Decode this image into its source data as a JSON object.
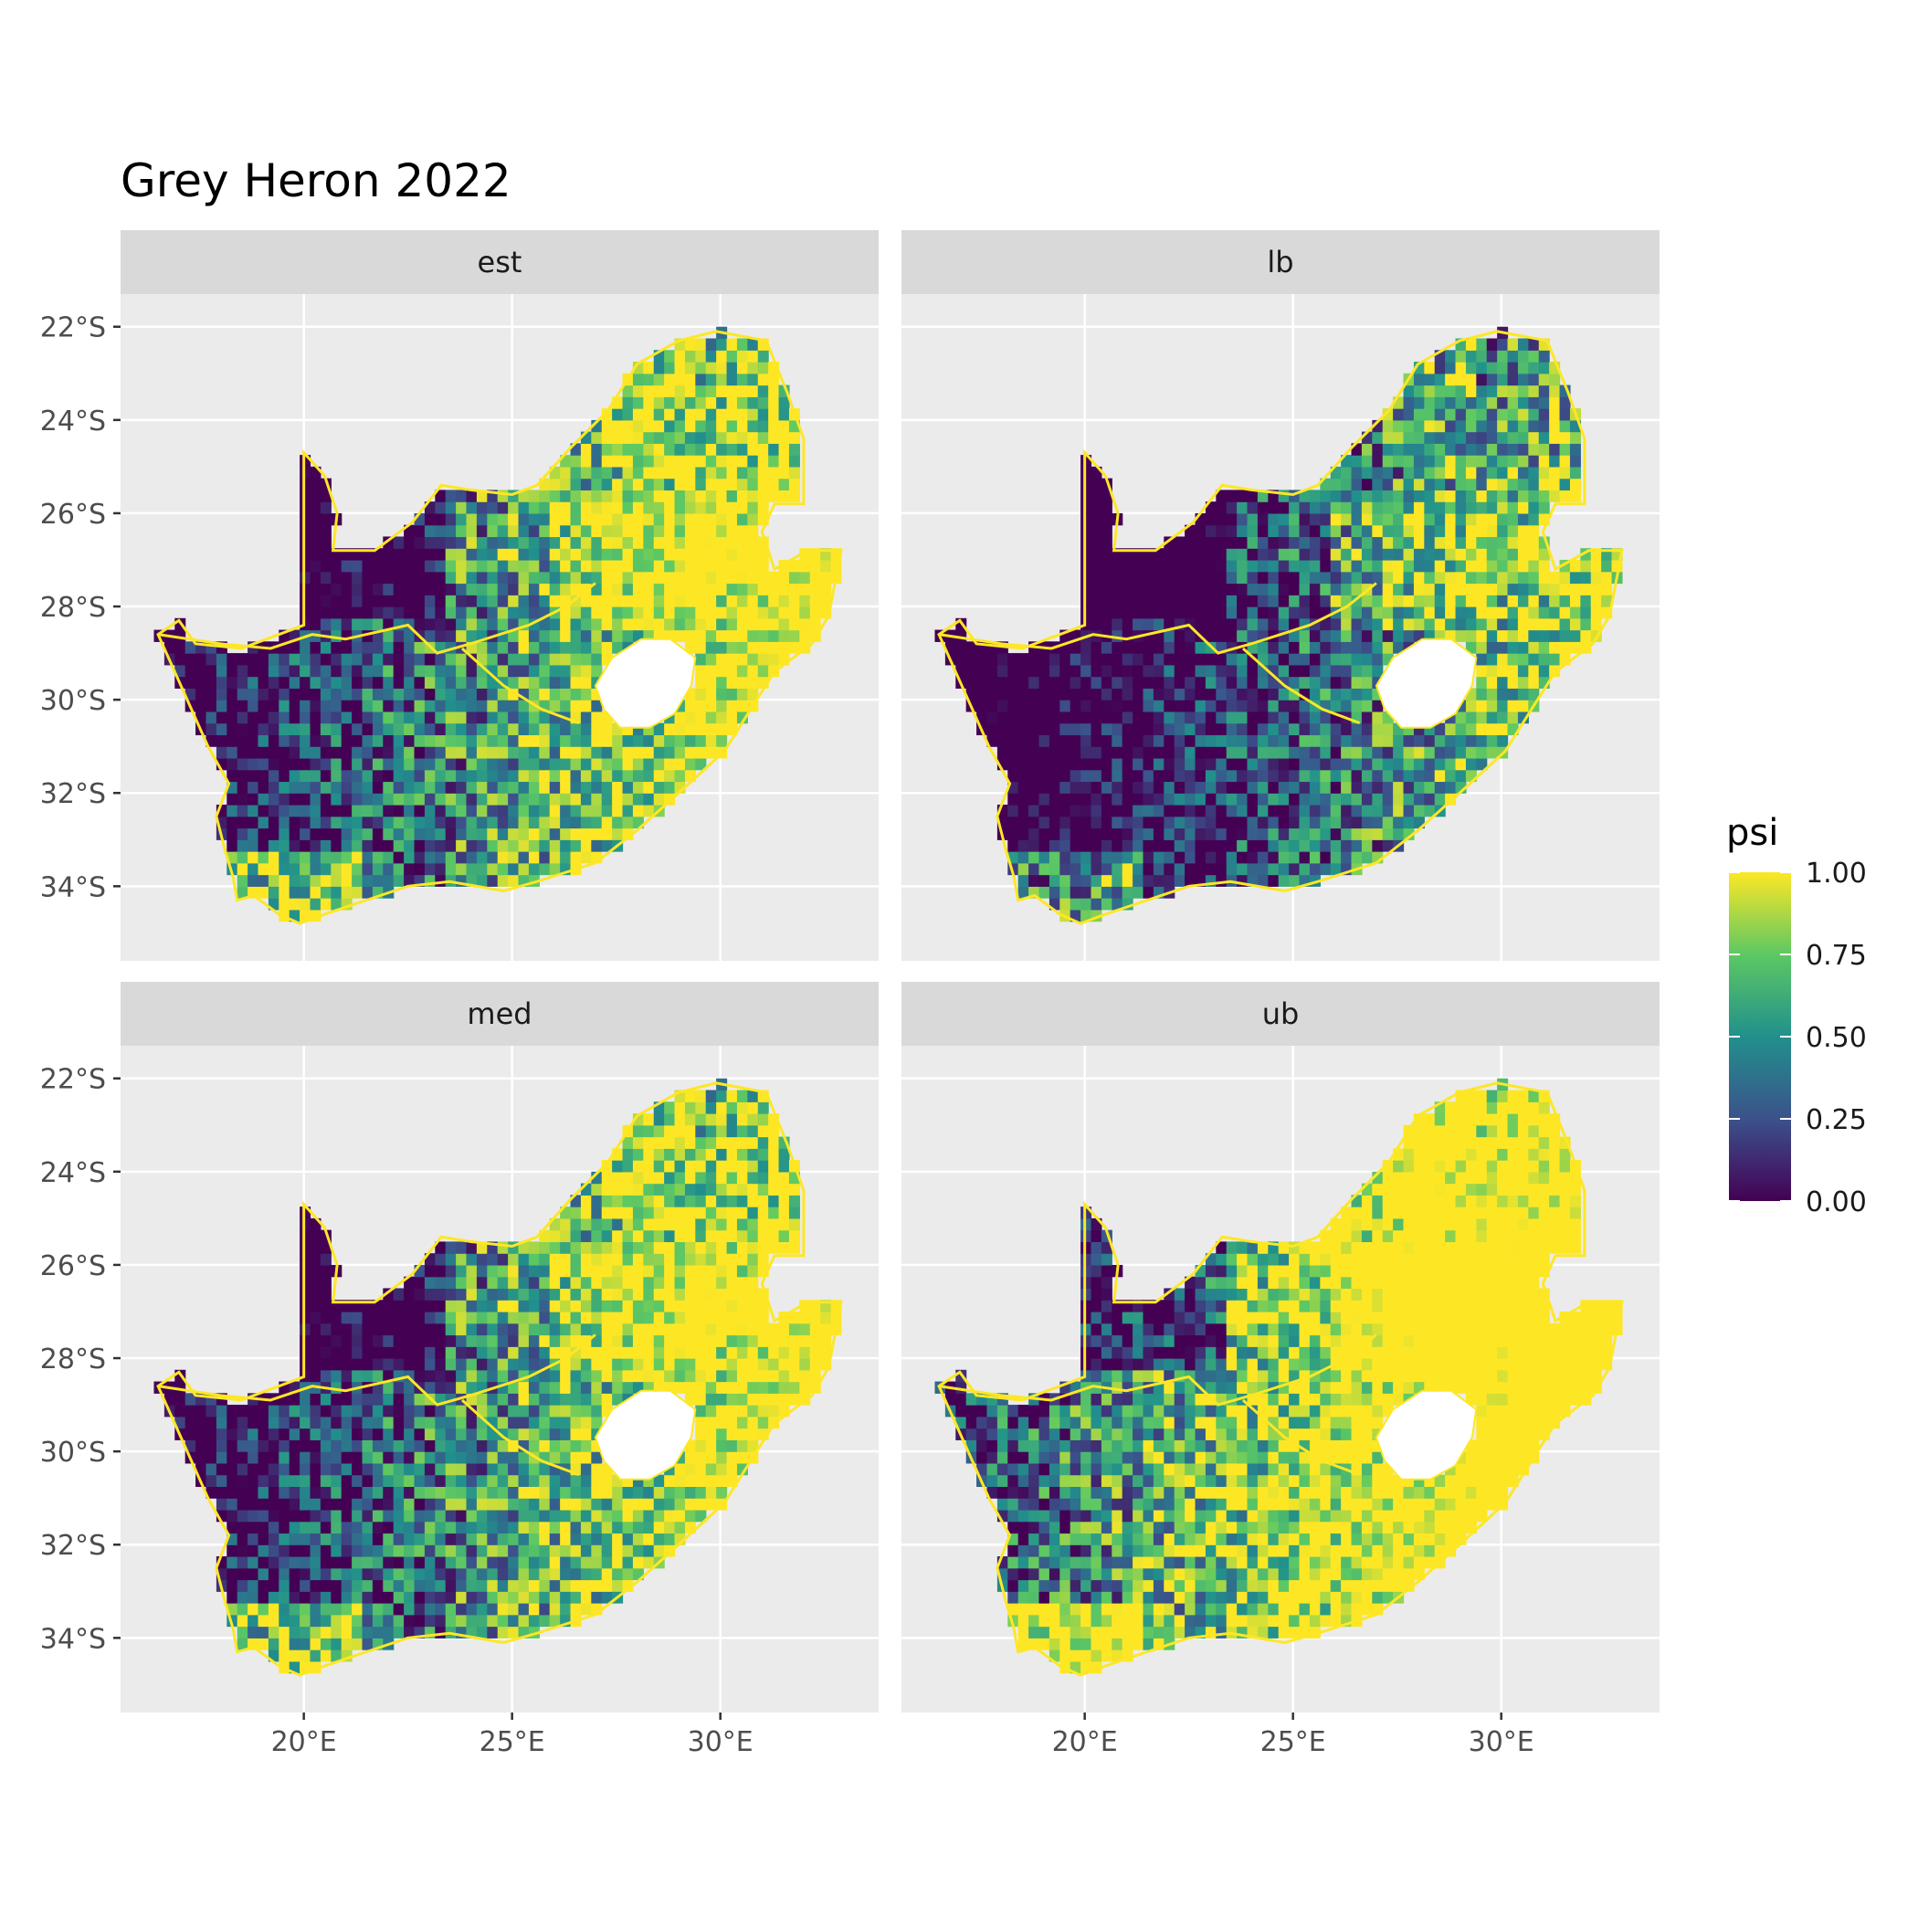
{
  "title": "Grey Heron 2022",
  "panels": [
    {
      "id": "est",
      "label": "est",
      "coverage": "mid"
    },
    {
      "id": "lb",
      "label": "lb",
      "coverage": "low"
    },
    {
      "id": "med",
      "label": "med",
      "coverage": "mid"
    },
    {
      "id": "ub",
      "label": "ub",
      "coverage": "high"
    }
  ],
  "x_ticks": [
    "20°E",
    "25°E",
    "30°E"
  ],
  "y_ticks": [
    "22°S",
    "24°S",
    "26°S",
    "28°S",
    "30°S",
    "32°S",
    "34°S"
  ],
  "x_tick_values": [
    20,
    25,
    30
  ],
  "y_tick_values": [
    -22,
    -24,
    -26,
    -28,
    -30,
    -32,
    -34
  ],
  "x_range": [
    15.6,
    33.8
  ],
  "y_range": [
    -35.6,
    -21.3
  ],
  "legend": {
    "title": "psi",
    "labels": [
      "1.00",
      "0.75",
      "0.50",
      "0.25",
      "0.00"
    ],
    "values": [
      1.0,
      0.75,
      0.5,
      0.25,
      0.0
    ],
    "colors": [
      "#440154",
      "#3b528b",
      "#21908c",
      "#5dc863",
      "#fde725"
    ]
  },
  "colors": {
    "panel_background": "#ebebeb",
    "strip_background": "#d9d9d9",
    "grid": "#ffffff",
    "coast": "#fde725"
  }
}
